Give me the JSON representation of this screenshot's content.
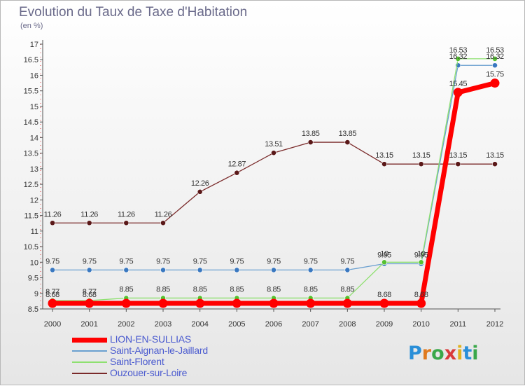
{
  "title": "Evolution du Taux de Taxe d'Habitation",
  "unit": "(en %)",
  "logo": {
    "text": "Proxiti",
    "letter_colors": [
      "#2a8fd8",
      "#e07a1e",
      "#3aa84a",
      "#d93a3a",
      "#e0b21e",
      "#2a8fd8",
      "#3aa84a"
    ]
  },
  "chart_data": {
    "type": "line",
    "title": "Evolution du Taux de Taxe d'Habitation",
    "ylabel": "(en %)",
    "x": [
      "2000",
      "2001",
      "2002",
      "2003",
      "2004",
      "2005",
      "2006",
      "2007",
      "2008",
      "2009",
      "2010",
      "2011",
      "2012"
    ],
    "ylim": [
      8.5,
      17
    ],
    "yticks": [
      "8.5",
      "9",
      "9.5",
      "10",
      "10.5",
      "11",
      "11.5",
      "12",
      "12.5",
      "13",
      "13.5",
      "14",
      "14.5",
      "15",
      "15.5",
      "16",
      "16.5",
      "17"
    ],
    "grid": false,
    "legend_position": "bottom-left",
    "series": [
      {
        "name": "LION-EN-SULLIAS",
        "color": "#ff0000",
        "marker": "#ff0000",
        "width": 7,
        "values": [
          8.68,
          8.68,
          8.68,
          8.68,
          8.68,
          8.68,
          8.68,
          8.68,
          8.68,
          8.68,
          8.68,
          15.45,
          15.75
        ],
        "labels": [
          "8.68",
          "8.68",
          "",
          "",
          "",
          "",
          "",
          "",
          "",
          "8.68",
          "8.68",
          "15.45",
          "15.75"
        ]
      },
      {
        "name": "Saint-Aignan-le-Jaillard",
        "color": "#6aa0d0",
        "marker": "#3a78c0",
        "width": 1.3,
        "values": [
          9.75,
          9.75,
          9.75,
          9.75,
          9.75,
          9.75,
          9.75,
          9.75,
          9.75,
          9.95,
          9.95,
          16.32,
          16.32
        ],
        "labels": [
          "9.75",
          "9.75",
          "9.75",
          "9.75",
          "9.75",
          "9.75",
          "9.75",
          "9.75",
          "9.75",
          "9.95",
          "9.95",
          "16.32",
          "16.32"
        ]
      },
      {
        "name": "Saint-Florent",
        "color": "#8ee070",
        "marker": "#55c030",
        "width": 1.3,
        "values": [
          8.77,
          8.77,
          8.85,
          8.85,
          8.85,
          8.85,
          8.85,
          8.85,
          8.85,
          10,
          10,
          16.53,
          16.53
        ],
        "labels": [
          "8.77",
          "8.77",
          "8.85",
          "8.85",
          "8.85",
          "8.85",
          "8.85",
          "8.85",
          "8.85",
          "10",
          "10",
          "16.53",
          "16.53"
        ]
      },
      {
        "name": "Ouzouer-sur-Loire",
        "color": "#7a2a2a",
        "marker": "#5a1818",
        "width": 1.3,
        "values": [
          11.26,
          11.26,
          11.26,
          11.26,
          12.26,
          12.87,
          13.51,
          13.85,
          13.85,
          13.15,
          13.15,
          13.15,
          13.15
        ],
        "labels": [
          "11.26",
          "11.26",
          "11.26",
          "11.26",
          "12.26",
          "12.87",
          "13.51",
          "13.85",
          "13.85",
          "13.15",
          "13.15",
          "13.15",
          "13.15"
        ]
      }
    ]
  }
}
